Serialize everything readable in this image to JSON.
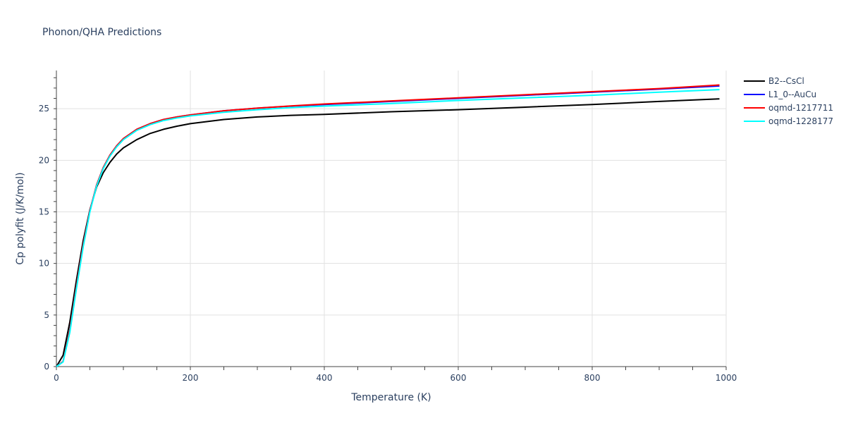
{
  "chart_data": {
    "type": "line",
    "title": "Phonon/QHA Predictions",
    "xlabel": "Temperature (K)",
    "ylabel": "Cp polyfit (J/K/mol)",
    "xlim": [
      0,
      1000
    ],
    "ylim": [
      0,
      28.7
    ],
    "x_ticks": [
      0,
      200,
      400,
      600,
      800,
      1000
    ],
    "x_tick_labels": [
      "0",
      "200",
      "400",
      "600",
      "800",
      "1000"
    ],
    "y_ticks": [
      0,
      5,
      10,
      15,
      20,
      25
    ],
    "y_tick_labels": [
      "0",
      "5",
      "10",
      "15",
      "20",
      "25"
    ],
    "grid": true,
    "legend_position": "top-right",
    "series": [
      {
        "name": "B2--CsCl",
        "color": "#000000",
        "x": [
          0,
          10,
          20,
          30,
          40,
          50,
          60,
          70,
          80,
          90,
          100,
          120,
          140,
          160,
          180,
          200,
          250,
          300,
          350,
          400,
          500,
          600,
          700,
          800,
          900,
          990
        ],
        "y": [
          0,
          1.1,
          4.3,
          8.4,
          12.2,
          15.2,
          17.4,
          18.8,
          19.8,
          20.6,
          21.2,
          22.0,
          22.6,
          23.0,
          23.3,
          23.55,
          23.95,
          24.2,
          24.35,
          24.45,
          24.7,
          24.9,
          25.15,
          25.4,
          25.7,
          25.95
        ]
      },
      {
        "name": "L1_0--AuCu",
        "color": "#0000ff",
        "x": [
          0,
          10,
          20,
          30,
          40,
          50,
          60,
          70,
          80,
          90,
          100,
          120,
          140,
          160,
          180,
          200,
          250,
          300,
          350,
          400,
          500,
          600,
          700,
          800,
          900,
          990
        ],
        "y": [
          0,
          0.5,
          3.5,
          7.8,
          11.8,
          15.1,
          17.6,
          19.3,
          20.5,
          21.4,
          22.1,
          23.0,
          23.55,
          23.95,
          24.2,
          24.4,
          24.8,
          25.05,
          25.25,
          25.4,
          25.7,
          26.0,
          26.3,
          26.6,
          26.9,
          27.2
        ]
      },
      {
        "name": "oqmd-1217711",
        "color": "#ff0000",
        "x": [
          0,
          10,
          20,
          30,
          40,
          50,
          60,
          70,
          80,
          90,
          100,
          120,
          140,
          160,
          180,
          200,
          250,
          300,
          350,
          400,
          500,
          600,
          700,
          800,
          900,
          990
        ],
        "y": [
          0,
          0.5,
          3.5,
          7.8,
          11.8,
          15.1,
          17.6,
          19.3,
          20.5,
          21.4,
          22.1,
          23.0,
          23.55,
          23.95,
          24.2,
          24.4,
          24.8,
          25.05,
          25.27,
          25.45,
          25.75,
          26.05,
          26.35,
          26.65,
          26.95,
          27.3
        ]
      },
      {
        "name": "oqmd-1228177",
        "color": "#00ffff",
        "x": [
          0,
          10,
          20,
          30,
          40,
          50,
          60,
          70,
          80,
          90,
          100,
          120,
          140,
          160,
          180,
          200,
          250,
          300,
          350,
          400,
          500,
          600,
          700,
          800,
          900,
          990
        ],
        "y": [
          0,
          0.45,
          3.3,
          7.6,
          11.6,
          15.0,
          17.5,
          19.2,
          20.4,
          21.3,
          22.0,
          22.9,
          23.45,
          23.85,
          24.1,
          24.3,
          24.65,
          24.9,
          25.1,
          25.25,
          25.5,
          25.8,
          26.05,
          26.3,
          26.6,
          26.85
        ]
      }
    ]
  }
}
